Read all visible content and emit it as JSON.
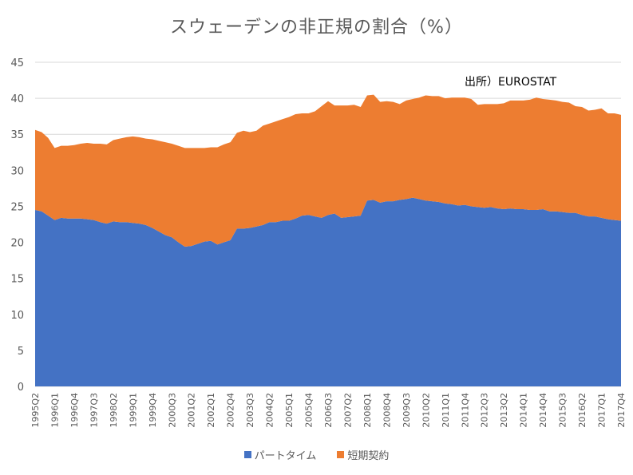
{
  "title": "スウェーデンの非正規の割合（%）",
  "source_note": "出所）EUROSTAT",
  "colors": {
    "part_time": "#4472C4",
    "short_term": "#ED7D31",
    "grid": "#D9D9D9",
    "text": "#595959"
  },
  "chart_data": {
    "type": "area",
    "stacked": true,
    "title": "スウェーデンの非正規の割合（%）",
    "xlabel": "",
    "ylabel": "",
    "ylim": [
      0,
      45
    ],
    "yticks": [
      0,
      5,
      10,
      15,
      20,
      25,
      30,
      35,
      40,
      45
    ],
    "grid": true,
    "legend_position": "bottom",
    "x": [
      "1995Q2",
      "1995Q3",
      "1995Q4",
      "1996Q1",
      "1996Q2",
      "1996Q3",
      "1996Q4",
      "1997Q1",
      "1997Q2",
      "1997Q3",
      "1997Q4",
      "1998Q1",
      "1998Q2",
      "1998Q3",
      "1998Q4",
      "1999Q1",
      "1999Q2",
      "1999Q3",
      "1999Q4",
      "2000Q1",
      "2000Q2",
      "2000Q3",
      "2000Q4",
      "2001Q1",
      "2001Q2",
      "2001Q3",
      "2001Q4",
      "2002Q1",
      "2002Q2",
      "2002Q3",
      "2002Q4",
      "2003Q1",
      "2003Q2",
      "2003Q3",
      "2003Q4",
      "2004Q1",
      "2004Q2",
      "2004Q3",
      "2004Q4",
      "2005Q1",
      "2005Q2",
      "2005Q3",
      "2005Q4",
      "2006Q1",
      "2006Q2",
      "2006Q3",
      "2006Q4",
      "2007Q1",
      "2007Q2",
      "2007Q3",
      "2007Q4",
      "2008Q1",
      "2008Q2",
      "2008Q3",
      "2008Q4",
      "2009Q1",
      "2009Q2",
      "2009Q3",
      "2009Q4",
      "2010Q1",
      "2010Q2",
      "2010Q3",
      "2010Q4",
      "2011Q1",
      "2011Q2",
      "2011Q3",
      "2011Q4",
      "2012Q1",
      "2012Q2",
      "2012Q3",
      "2012Q4",
      "2013Q1",
      "2013Q2",
      "2013Q3",
      "2013Q4",
      "2014Q1",
      "2014Q2",
      "2014Q3",
      "2014Q4",
      "2015Q1",
      "2015Q2",
      "2015Q3",
      "2015Q4",
      "2016Q1",
      "2016Q2",
      "2016Q3",
      "2016Q4",
      "2017Q1",
      "2017Q2",
      "2017Q3",
      "2017Q4"
    ],
    "x_tick_labels": [
      "1995Q2",
      "1996Q1",
      "1996Q4",
      "1997Q3",
      "1998Q2",
      "1999Q1",
      "1999Q4",
      "2000Q3",
      "2001Q2",
      "2002Q1",
      "2002Q4",
      "2003Q3",
      "2004Q2",
      "2005Q1",
      "2005Q4",
      "2006Q3",
      "2007Q2",
      "2008Q1",
      "2008Q4",
      "2009Q3",
      "2010Q2",
      "2011Q1",
      "2011Q4",
      "2012Q3",
      "2013Q2",
      "2014Q1",
      "2014Q4",
      "2015Q3",
      "2016Q2",
      "2017Q1",
      "2017Q4"
    ],
    "series": [
      {
        "name": "パートタイム",
        "color": "#4472C4",
        "values": [
          24.5,
          24.3,
          23.7,
          23.1,
          23.4,
          23.3,
          23.3,
          23.3,
          23.2,
          23.1,
          22.8,
          22.6,
          22.9,
          22.8,
          22.8,
          22.7,
          22.6,
          22.4,
          22.0,
          21.5,
          21.0,
          20.7,
          20.0,
          19.4,
          19.5,
          19.8,
          20.1,
          20.2,
          19.7,
          20.0,
          20.3,
          21.9,
          21.9,
          22.0,
          22.2,
          22.4,
          22.8,
          22.8,
          23.0,
          23.0,
          23.3,
          23.7,
          23.8,
          23.6,
          23.4,
          23.8,
          24.0,
          23.4,
          23.5,
          23.6,
          23.7,
          25.8,
          25.9,
          25.5,
          25.7,
          25.7,
          25.9,
          26.0,
          26.2,
          26.0,
          25.8,
          25.7,
          25.6,
          25.4,
          25.3,
          25.1,
          25.2,
          25.0,
          24.9,
          24.8,
          24.9,
          24.7,
          24.6,
          24.7,
          24.6,
          24.6,
          24.5,
          24.5,
          24.6,
          24.3,
          24.3,
          24.2,
          24.1,
          24.1,
          23.8,
          23.6,
          23.6,
          23.4,
          23.2,
          23.1,
          23.0
        ]
      },
      {
        "name": "短期契約",
        "color": "#ED7D31",
        "values": [
          11.1,
          11.0,
          10.8,
          10.0,
          10.0,
          10.1,
          10.2,
          10.4,
          10.6,
          10.6,
          10.9,
          11.0,
          11.3,
          11.6,
          11.8,
          12.0,
          12.0,
          12.0,
          12.3,
          12.6,
          12.9,
          13.0,
          13.4,
          13.7,
          13.6,
          13.3,
          13.0,
          13.0,
          13.5,
          13.6,
          13.6,
          13.3,
          13.6,
          13.3,
          13.3,
          13.8,
          13.7,
          14.0,
          14.1,
          14.4,
          14.5,
          14.2,
          14.1,
          14.6,
          15.5,
          15.8,
          15.0,
          15.6,
          15.5,
          15.5,
          15.1,
          14.6,
          14.6,
          14.0,
          13.9,
          13.8,
          13.3,
          13.7,
          13.7,
          14.1,
          14.6,
          14.6,
          14.7,
          14.6,
          14.8,
          15.0,
          14.9,
          14.9,
          14.2,
          14.4,
          14.3,
          14.5,
          14.7,
          15.0,
          15.1,
          15.1,
          15.3,
          15.6,
          15.3,
          15.5,
          15.4,
          15.3,
          15.3,
          14.8,
          15.0,
          14.7,
          14.8,
          15.2,
          14.7,
          14.8,
          14.7
        ]
      }
    ]
  }
}
